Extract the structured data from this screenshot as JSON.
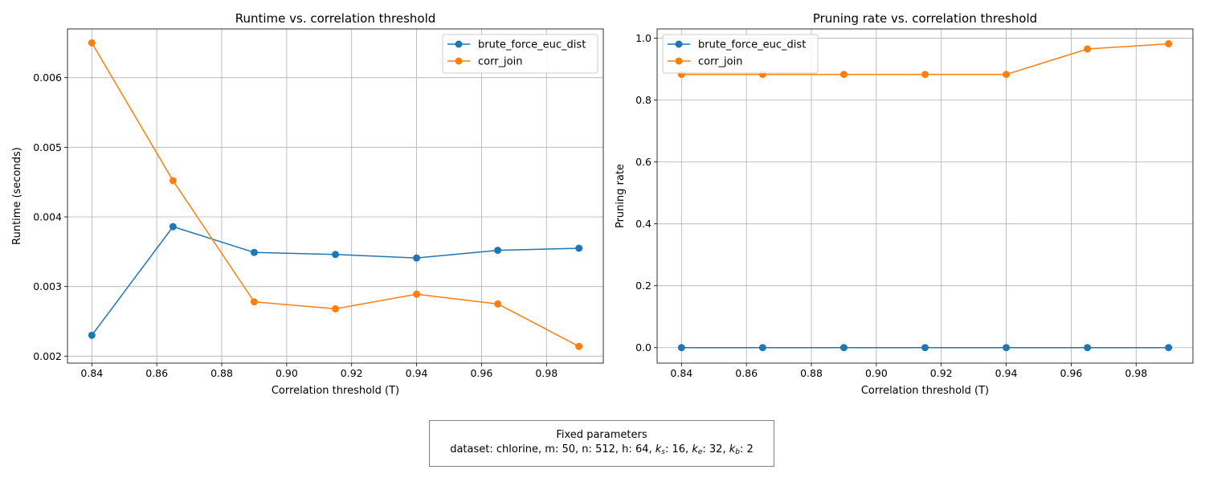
{
  "colors": {
    "series1": "#1f77b4",
    "series2": "#ff7f0e",
    "grid": "#b0b0b0"
  },
  "chart_data": [
    {
      "type": "line",
      "title": "Runtime vs. correlation threshold",
      "xlabel": "Correlation threshold (T)",
      "ylabel": "Runtime (seconds)",
      "xlim": [
        0.8325,
        0.9975
      ],
      "ylim": [
        0.0019,
        0.0067
      ],
      "xticks": [
        "0.84",
        "0.86",
        "0.88",
        "0.90",
        "0.92",
        "0.94",
        "0.96",
        "0.98"
      ],
      "yticks": [
        "0.002",
        "0.003",
        "0.004",
        "0.005",
        "0.006"
      ],
      "grid": true,
      "legend": "top-right",
      "x": [
        0.84,
        0.865,
        0.89,
        0.915,
        0.94,
        0.965,
        0.99
      ],
      "series": [
        {
          "name": "brute_force_euc_dist",
          "values": [
            0.0023,
            0.00386,
            0.00349,
            0.00346,
            0.00341,
            0.00352,
            0.00355
          ]
        },
        {
          "name": "corr_join",
          "values": [
            0.0065,
            0.00452,
            0.00278,
            0.00268,
            0.00289,
            0.00275,
            0.00214
          ]
        }
      ]
    },
    {
      "type": "line",
      "title": "Pruning rate vs. correlation threshold",
      "xlabel": "Correlation threshold (T)",
      "ylabel": "Pruning rate",
      "xlim": [
        0.8325,
        0.9975
      ],
      "ylim": [
        -0.05,
        1.03
      ],
      "xticks": [
        "0.84",
        "0.86",
        "0.88",
        "0.90",
        "0.92",
        "0.94",
        "0.96",
        "0.98"
      ],
      "yticks": [
        "0.0",
        "0.2",
        "0.4",
        "0.6",
        "0.8",
        "1.0"
      ],
      "grid": true,
      "legend": "top-left",
      "x": [
        0.84,
        0.865,
        0.89,
        0.915,
        0.94,
        0.965,
        0.99
      ],
      "series": [
        {
          "name": "brute_force_euc_dist",
          "values": [
            0,
            0,
            0,
            0,
            0,
            0,
            0
          ]
        },
        {
          "name": "corr_join",
          "values": [
            0.883,
            0.883,
            0.883,
            0.883,
            0.883,
            0.965,
            0.982
          ]
        }
      ]
    }
  ],
  "note": {
    "title": "Fixed parameters",
    "dataset": "chlorine",
    "m": "50",
    "n": "512",
    "h": "64",
    "ks": "16",
    "ke": "32",
    "kb": "2"
  }
}
